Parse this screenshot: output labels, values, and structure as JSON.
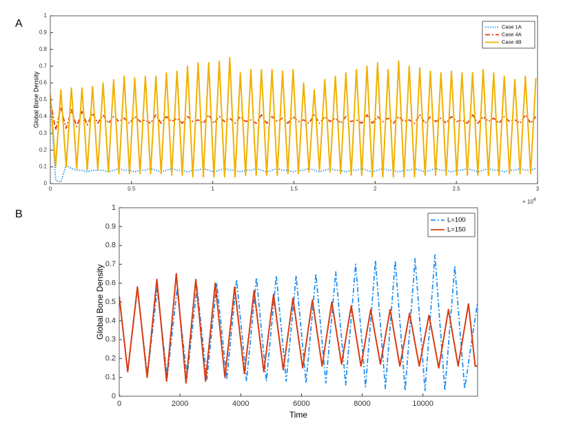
{
  "chart_data": [
    {
      "type": "line",
      "label": "A",
      "ylabel": "Global Bone Density",
      "x_multiplier": "× 10",
      "x_exponent": "4",
      "xlim": [
        0,
        30000
      ],
      "xticks": [
        0,
        {
          "value": 5000,
          "label": "0.5"
        },
        {
          "value": 10000,
          "label": "1"
        },
        {
          "value": 15000,
          "label": "1.5"
        },
        {
          "value": 20000,
          "label": "2"
        },
        {
          "value": 25000,
          "label": "2.5"
        },
        {
          "value": 30000,
          "label": "3"
        }
      ],
      "ylim": [
        0,
        1
      ],
      "yticks": [
        0,
        0.1,
        0.2,
        0.3,
        0.4,
        0.5,
        0.6,
        0.7,
        0.8,
        0.9,
        1
      ],
      "legend": "upper right",
      "x": [
        0,
        325,
        650,
        975,
        1300,
        1625,
        1950,
        2275,
        2600,
        2925,
        3250,
        3575,
        3900,
        4225,
        4550,
        4875,
        5200,
        5525,
        5850,
        6175,
        6500,
        6825,
        7150,
        7475,
        7800,
        8125,
        8450,
        8775,
        9100,
        9425,
        9750,
        10075,
        10400,
        10725,
        11050,
        11375,
        11700,
        12025,
        12350,
        12675,
        13000,
        13325,
        13650,
        13975,
        14300,
        14625,
        14950,
        15275,
        15600,
        15925,
        16250,
        16575,
        16900,
        17225,
        17550,
        17875,
        18200,
        18525,
        18850,
        19175,
        19500,
        19825,
        20150,
        20475,
        20800,
        21125,
        21450,
        21775,
        22100,
        22425,
        22750,
        23075,
        23400,
        23725,
        24050,
        24375,
        24700,
        25025,
        25350,
        25675,
        26000,
        26325,
        26650,
        26975,
        27300,
        27625,
        27950,
        28275,
        28600,
        28925,
        29250,
        29575,
        29900
      ],
      "series": [
        {
          "name": "Case 1A",
          "color": "#1f8ff0",
          "dash": "dotted",
          "values": [
            0.5,
            0.02,
            0.01,
            0.11,
            0.09,
            0.08,
            0.08,
            0.07,
            0.08,
            0.08,
            0.08,
            0.07,
            0.08,
            0.09,
            0.08,
            0.08,
            0.07,
            0.08,
            0.08,
            0.09,
            0.08,
            0.07,
            0.08,
            0.09,
            0.08,
            0.08,
            0.07,
            0.08,
            0.08,
            0.09,
            0.08,
            0.07,
            0.08,
            0.09,
            0.08,
            0.08,
            0.07,
            0.08,
            0.08,
            0.09,
            0.08,
            0.07,
            0.08,
            0.09,
            0.08,
            0.08,
            0.07,
            0.08,
            0.08,
            0.09,
            0.08,
            0.07,
            0.08,
            0.09,
            0.08,
            0.08,
            0.07,
            0.08,
            0.08,
            0.09,
            0.08,
            0.07,
            0.08,
            0.09,
            0.08,
            0.08,
            0.07,
            0.08,
            0.08,
            0.09,
            0.08,
            0.07,
            0.08,
            0.09,
            0.08,
            0.08,
            0.07,
            0.08,
            0.08,
            0.09,
            0.08,
            0.07,
            0.08,
            0.09,
            0.08,
            0.08,
            0.07,
            0.08,
            0.08,
            0.09,
            0.08,
            0.08,
            0.09
          ]
        },
        {
          "name": "Case 4A",
          "color": "#e03a10",
          "dash": "dashdot",
          "values": [
            0.5,
            0.32,
            0.45,
            0.33,
            0.44,
            0.34,
            0.43,
            0.35,
            0.42,
            0.36,
            0.41,
            0.36,
            0.4,
            0.37,
            0.39,
            0.36,
            0.4,
            0.37,
            0.38,
            0.36,
            0.41,
            0.36,
            0.4,
            0.37,
            0.39,
            0.36,
            0.4,
            0.37,
            0.38,
            0.36,
            0.41,
            0.36,
            0.4,
            0.37,
            0.39,
            0.36,
            0.4,
            0.37,
            0.38,
            0.36,
            0.41,
            0.36,
            0.4,
            0.37,
            0.39,
            0.36,
            0.4,
            0.37,
            0.38,
            0.36,
            0.41,
            0.36,
            0.4,
            0.37,
            0.39,
            0.36,
            0.4,
            0.37,
            0.38,
            0.36,
            0.41,
            0.36,
            0.4,
            0.37,
            0.39,
            0.36,
            0.4,
            0.37,
            0.38,
            0.36,
            0.41,
            0.36,
            0.4,
            0.37,
            0.39,
            0.36,
            0.4,
            0.37,
            0.38,
            0.36,
            0.41,
            0.36,
            0.4,
            0.37,
            0.39,
            0.36,
            0.4,
            0.37,
            0.38,
            0.36,
            0.41,
            0.36,
            0.4
          ]
        },
        {
          "name": "Case 4B",
          "color": "#f0b000",
          "dash": "solid",
          "values": [
            0.53,
            0.1,
            0.56,
            0.1,
            0.57,
            0.09,
            0.57,
            0.08,
            0.58,
            0.08,
            0.6,
            0.07,
            0.62,
            0.06,
            0.64,
            0.06,
            0.63,
            0.06,
            0.64,
            0.06,
            0.64,
            0.06,
            0.66,
            0.05,
            0.67,
            0.05,
            0.7,
            0.04,
            0.72,
            0.04,
            0.72,
            0.04,
            0.73,
            0.04,
            0.75,
            0.04,
            0.66,
            0.05,
            0.68,
            0.05,
            0.68,
            0.05,
            0.68,
            0.05,
            0.67,
            0.06,
            0.68,
            0.06,
            0.6,
            0.07,
            0.56,
            0.08,
            0.62,
            0.07,
            0.64,
            0.06,
            0.66,
            0.05,
            0.68,
            0.05,
            0.7,
            0.04,
            0.72,
            0.04,
            0.68,
            0.04,
            0.73,
            0.04,
            0.7,
            0.04,
            0.69,
            0.05,
            0.67,
            0.05,
            0.66,
            0.05,
            0.67,
            0.05,
            0.66,
            0.05,
            0.66,
            0.05,
            0.68,
            0.05,
            0.66,
            0.05,
            0.64,
            0.06,
            0.62,
            0.06,
            0.64,
            0.06,
            0.63
          ]
        }
      ]
    },
    {
      "type": "line",
      "label": "B",
      "ylabel": "Global Bone Density",
      "xlabel": "Time",
      "xlim": [
        0,
        11800
      ],
      "xticks": [
        0,
        2000,
        4000,
        6000,
        8000,
        10000
      ],
      "ylim": [
        0,
        1
      ],
      "yticks": [
        0,
        0.1,
        0.2,
        0.3,
        0.4,
        0.5,
        0.6,
        0.7,
        0.8,
        0.9,
        1
      ],
      "legend": "upper right",
      "series": [
        {
          "name": "L=100",
          "color": "#1f8ff0",
          "dash": "dashdot",
          "x": [
            0,
            280,
            600,
            927,
            1253,
            1580,
            1906,
            2233,
            2559,
            2886,
            3212,
            3539,
            3865,
            4192,
            4518,
            4845,
            5171,
            5498,
            5824,
            6151,
            6477,
            6804,
            7130,
            7457,
            7783,
            8110,
            8436,
            8763,
            9089,
            9416,
            9742,
            10069,
            10395,
            10722,
            11048,
            11375,
            11800
          ],
          "values": [
            0.53,
            0.13,
            0.57,
            0.11,
            0.57,
            0.1,
            0.57,
            0.1,
            0.58,
            0.09,
            0.6,
            0.09,
            0.62,
            0.08,
            0.63,
            0.08,
            0.64,
            0.08,
            0.64,
            0.07,
            0.65,
            0.07,
            0.66,
            0.06,
            0.7,
            0.05,
            0.72,
            0.04,
            0.72,
            0.03,
            0.73,
            0.03,
            0.75,
            0.03,
            0.69,
            0.04,
            0.5
          ]
        },
        {
          "name": "L=150",
          "color": "#d83a10",
          "dash": "solid",
          "x": [
            0,
            280,
            600,
            920,
            1240,
            1560,
            1880,
            2200,
            2520,
            2840,
            3160,
            3480,
            3800,
            4120,
            4440,
            4760,
            5080,
            5400,
            5720,
            6040,
            6360,
            6680,
            7000,
            7320,
            7640,
            7960,
            8280,
            8600,
            8920,
            9240,
            9560,
            9880,
            10200,
            10520,
            10840,
            11160,
            11500,
            11720,
            11800
          ],
          "values": [
            0.53,
            0.13,
            0.58,
            0.1,
            0.62,
            0.08,
            0.65,
            0.07,
            0.62,
            0.08,
            0.6,
            0.1,
            0.58,
            0.12,
            0.56,
            0.13,
            0.54,
            0.14,
            0.52,
            0.15,
            0.51,
            0.16,
            0.5,
            0.17,
            0.48,
            0.16,
            0.46,
            0.17,
            0.46,
            0.16,
            0.44,
            0.16,
            0.43,
            0.15,
            0.46,
            0.16,
            0.49,
            0.16,
            0.16
          ]
        }
      ]
    }
  ]
}
